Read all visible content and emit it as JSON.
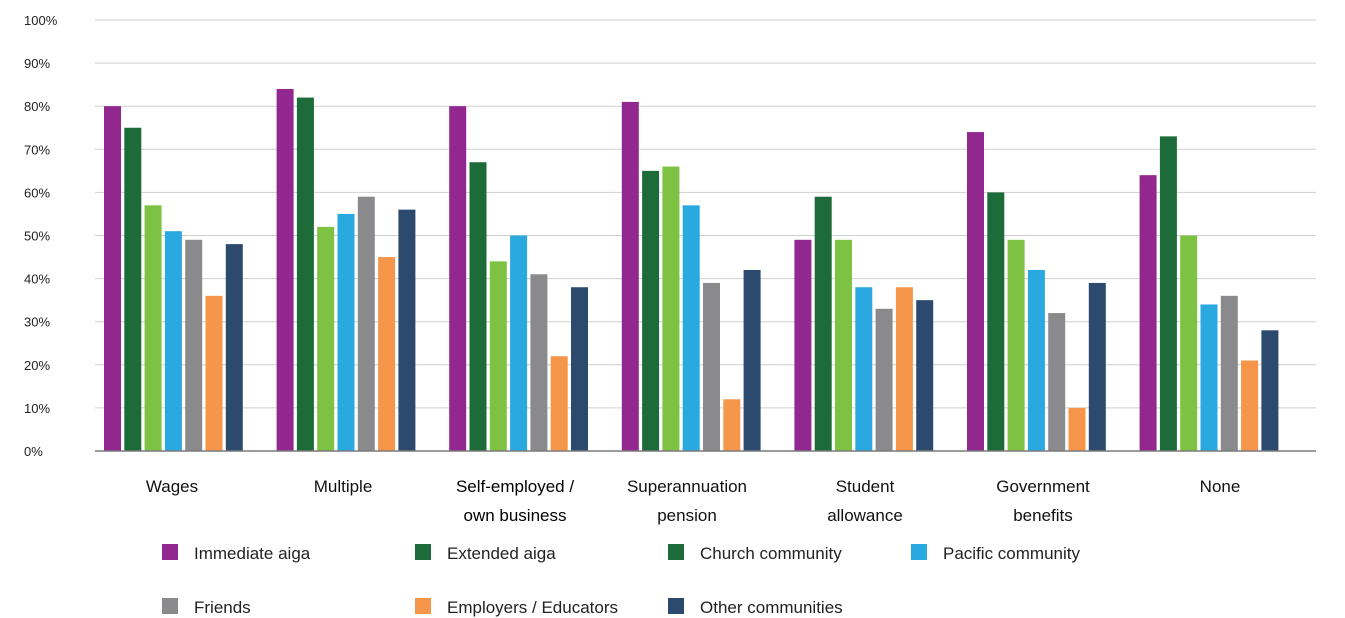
{
  "chart_data": {
    "type": "bar",
    "categories": [
      [
        "Wages"
      ],
      [
        "Multiple"
      ],
      [
        "Self-employed /",
        "own business"
      ],
      [
        "Superannuation",
        "pension"
      ],
      [
        "Student",
        "allowance"
      ],
      [
        "Government",
        "benefits"
      ],
      [
        "None"
      ]
    ],
    "y_ticks": [
      "0%",
      "10%",
      "20%",
      "30%",
      "40%",
      "50%",
      "60%",
      "70%",
      "80%",
      "90%",
      "100%"
    ],
    "ylim": [
      0,
      100
    ],
    "grid": true,
    "legend_position": "bottom",
    "series": [
      {
        "name": "Immediate aiga",
        "color": "#92278f",
        "values": [
          80,
          84,
          80,
          81,
          49,
          74,
          64
        ]
      },
      {
        "name": "Extended aiga",
        "color": "#1e6b3a",
        "values": [
          75,
          82,
          67,
          65,
          59,
          60,
          73
        ]
      },
      {
        "name": "Church community",
        "color": "#7dc242",
        "legend_color": "#1e6b3a",
        "values": [
          57,
          52,
          44,
          66,
          49,
          49,
          50
        ]
      },
      {
        "name": "Pacific community",
        "color": "#29a9e0",
        "values": [
          51,
          55,
          50,
          57,
          38,
          42,
          34
        ]
      },
      {
        "name": "Friends",
        "color": "#8a8a8d",
        "values": [
          49,
          59,
          41,
          39,
          33,
          32,
          36
        ]
      },
      {
        "name": "Employers / Educators",
        "color": "#f5964a",
        "values": [
          36,
          45,
          22,
          12,
          38,
          10,
          21
        ]
      },
      {
        "name": "Other communities",
        "color": "#2b4a6e",
        "values": [
          48,
          56,
          38,
          42,
          35,
          39,
          28
        ]
      }
    ]
  }
}
